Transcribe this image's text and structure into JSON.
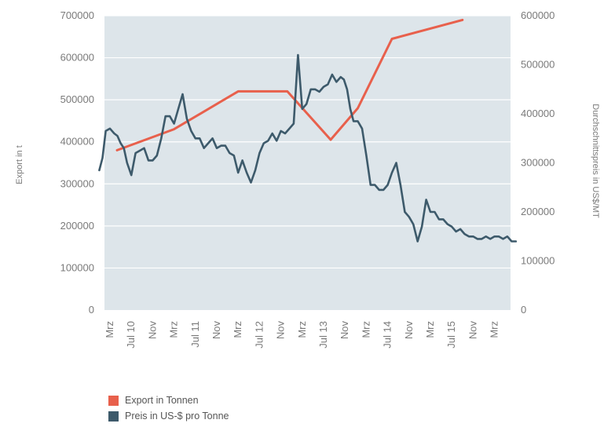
{
  "chart_data": {
    "type": "line",
    "x_labels": [
      "Mrz",
      "Jul 10",
      "Nov",
      "Mrz",
      "Jul 11",
      "Nov",
      "Mrz",
      "Jul 12",
      "Nov",
      "Mrz",
      "Jul 13",
      "Nov",
      "Mrz",
      "Jul 14",
      "Nov",
      "Mrz",
      "Jul 15",
      "Nov",
      "Mrz"
    ],
    "ylabel_left": "Export in t",
    "ylabel_right": "Durchschnittspreis in US$/MT",
    "y_left": {
      "lim": [
        0,
        700000
      ],
      "ticks": [
        "0",
        "100000",
        "200000",
        "300000",
        "400000",
        "500000",
        "600000",
        "700000"
      ]
    },
    "y_right": {
      "lim": [
        0,
        600000
      ],
      "ticks": [
        "0",
        "100000",
        "200000",
        "300000",
        "400000",
        "500000",
        "600000"
      ]
    },
    "grid": true,
    "legend_position": "bottom-left",
    "series": [
      {
        "name": "Export in Tonnen",
        "axis": "left",
        "color": "#e8604c",
        "x": [
          0.33,
          3.0,
          6.0,
          8.3,
          10.33,
          11.6,
          13.2,
          16.5
        ],
        "values": [
          380000,
          430000,
          520000,
          520000,
          405000,
          480000,
          645000,
          690000
        ]
      },
      {
        "name": "Preis in US-$ pro Tonne",
        "axis": "right",
        "color": "#3d5a6b",
        "x": [
          -0.5,
          -0.35,
          -0.2,
          0.0,
          0.2,
          0.35,
          0.5,
          0.65,
          0.8,
          1.0,
          1.2,
          1.4,
          1.6,
          1.8,
          2.0,
          2.2,
          2.4,
          2.6,
          2.8,
          3.0,
          3.2,
          3.4,
          3.6,
          3.8,
          4.0,
          4.2,
          4.4,
          4.6,
          4.8,
          5.0,
          5.2,
          5.4,
          5.6,
          5.8,
          6.0,
          6.2,
          6.4,
          6.6,
          6.8,
          7.0,
          7.2,
          7.4,
          7.6,
          7.8,
          8.0,
          8.2,
          8.4,
          8.6,
          8.8,
          9.0,
          9.2,
          9.4,
          9.6,
          9.8,
          10.0,
          10.2,
          10.4,
          10.6,
          10.8,
          10.95,
          11.1,
          11.25,
          11.4,
          11.6,
          11.8,
          12.0,
          12.2,
          12.4,
          12.6,
          12.8,
          13.0,
          13.2,
          13.4,
          13.6,
          13.8,
          14.0,
          14.2,
          14.4,
          14.6,
          14.8,
          15.0,
          15.2,
          15.4,
          15.6,
          15.8,
          16.0,
          16.2,
          16.4,
          16.6,
          16.8,
          17.0,
          17.2,
          17.4,
          17.6,
          17.8,
          18.0,
          18.2,
          18.4,
          18.6,
          18.8,
          19.0
        ],
        "values": [
          285000,
          310000,
          365000,
          370000,
          360000,
          355000,
          340000,
          330000,
          300000,
          275000,
          320000,
          325000,
          330000,
          305000,
          305000,
          315000,
          350000,
          395000,
          395000,
          380000,
          410000,
          440000,
          390000,
          365000,
          350000,
          350000,
          330000,
          340000,
          350000,
          330000,
          335000,
          335000,
          320000,
          315000,
          280000,
          305000,
          280000,
          260000,
          285000,
          320000,
          340000,
          345000,
          360000,
          345000,
          365000,
          360000,
          370000,
          380000,
          520000,
          410000,
          420000,
          450000,
          450000,
          445000,
          455000,
          460000,
          480000,
          465000,
          475000,
          470000,
          450000,
          410000,
          385000,
          385000,
          370000,
          315000,
          255000,
          255000,
          245000,
          245000,
          255000,
          280000,
          300000,
          255000,
          200000,
          190000,
          175000,
          140000,
          170000,
          225000,
          200000,
          200000,
          185000,
          185000,
          175000,
          170000,
          160000,
          165000,
          155000,
          150000,
          150000,
          145000,
          145000,
          150000,
          145000,
          150000,
          150000,
          145000,
          150000,
          140000,
          140000
        ]
      }
    ]
  }
}
